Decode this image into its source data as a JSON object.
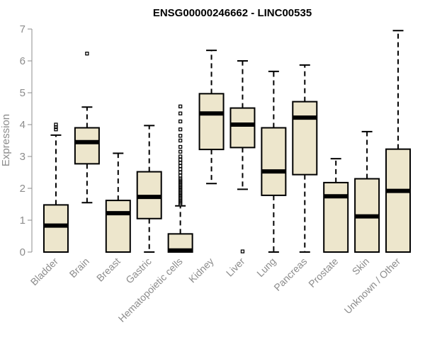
{
  "chart_data": {
    "type": "boxplot",
    "title": "ENSG00000246662 - LINC00535",
    "xlabel": "",
    "ylabel": "Expression",
    "ylim": [
      0,
      7
    ],
    "yticks": [
      "0",
      "1",
      "2",
      "3",
      "4",
      "5",
      "6",
      "7"
    ],
    "box_fill": "#ede6cc",
    "grid": false,
    "categories": [
      "Bladder",
      "Brain",
      "Breast",
      "Gastric",
      "Hematopoietic cells",
      "Kidney",
      "Liver",
      "Lung",
      "Pancreas",
      "Prostate",
      "Skin",
      "Unknown / Other"
    ],
    "boxes": [
      {
        "min": 0,
        "q1": 0,
        "median": 0.83,
        "q3": 1.48,
        "max": 3.67,
        "outliers": [
          3.85,
          3.92,
          4.0
        ]
      },
      {
        "min": 1.55,
        "q1": 2.77,
        "median": 3.45,
        "q3": 3.9,
        "max": 4.55,
        "outliers": [
          6.23
        ]
      },
      {
        "min": 0,
        "q1": 0,
        "median": 1.22,
        "q3": 1.62,
        "max": 3.1,
        "outliers": []
      },
      {
        "min": 0,
        "q1": 1.05,
        "median": 1.73,
        "q3": 2.52,
        "max": 3.97,
        "outliers": []
      },
      {
        "min": 0,
        "q1": 0,
        "median": 0.05,
        "q3": 0.57,
        "max": 1.45,
        "outliers": [
          1.5,
          1.55,
          1.6,
          1.65,
          1.7,
          1.75,
          1.8,
          1.85,
          1.9,
          1.95,
          2.0,
          2.05,
          2.1,
          2.15,
          2.2,
          2.25,
          2.3,
          2.4,
          2.5,
          2.6,
          2.7,
          2.8,
          2.9,
          3.0,
          3.15,
          3.3,
          3.5,
          3.65,
          3.85,
          4.1,
          4.35,
          4.57
        ]
      },
      {
        "min": 2.15,
        "q1": 3.22,
        "median": 4.35,
        "q3": 4.97,
        "max": 6.33,
        "outliers": []
      },
      {
        "min": 1.97,
        "q1": 3.28,
        "median": 4.0,
        "q3": 4.52,
        "max": 6.0,
        "outliers": [
          0.02
        ]
      },
      {
        "min": 0,
        "q1": 1.78,
        "median": 2.53,
        "q3": 3.9,
        "max": 5.67,
        "outliers": []
      },
      {
        "min": 0,
        "q1": 2.43,
        "median": 4.22,
        "q3": 4.72,
        "max": 5.87,
        "outliers": []
      },
      {
        "min": 0,
        "q1": 0,
        "median": 1.75,
        "q3": 2.18,
        "max": 2.93,
        "outliers": []
      },
      {
        "min": 0,
        "q1": 0,
        "median": 1.12,
        "q3": 2.3,
        "max": 3.78,
        "outliers": []
      },
      {
        "min": 0,
        "q1": 0,
        "median": 1.92,
        "q3": 3.23,
        "max": 6.95,
        "outliers": []
      }
    ]
  }
}
